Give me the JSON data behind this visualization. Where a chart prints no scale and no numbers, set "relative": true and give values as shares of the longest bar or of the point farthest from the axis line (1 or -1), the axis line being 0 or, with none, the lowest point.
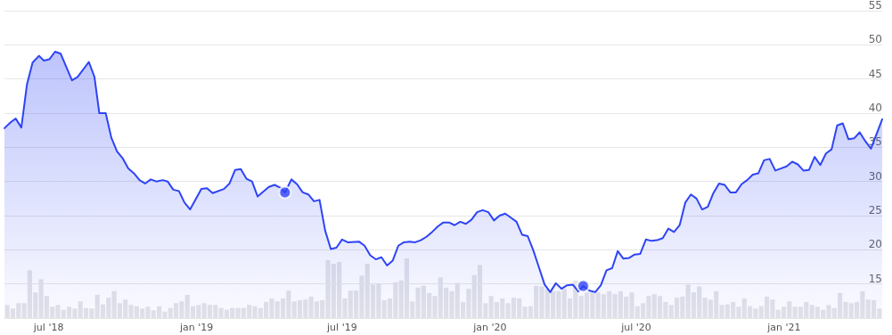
{
  "chart_data": [
    {
      "type": "area",
      "xlim": [
        "2018-05-07",
        "2021-05-03"
      ],
      "ylim": [
        10,
        55
      ],
      "yticks": [
        15,
        20,
        25,
        30,
        35,
        40,
        45,
        50,
        55
      ],
      "xticks": [
        {
          "value": "2018-07-01",
          "label": "jul '18"
        },
        {
          "value": "2019-01-01",
          "label": "jan '19"
        },
        {
          "value": "2019-07-01",
          "label": "jul '19"
        },
        {
          "value": "2020-01-01",
          "label": "jan '20"
        },
        {
          "value": "2020-07-01",
          "label": "jul '20"
        },
        {
          "value": "2021-01-01",
          "label": "jan '21"
        }
      ],
      "grid": "y",
      "marker": "none",
      "line_style": "solid",
      "series": [
        {
          "color": "#2e44f5",
          "x": [
            "2018-05-07",
            "2018-05-15",
            "2018-05-21",
            "2018-05-28",
            "2018-06-04",
            "2018-06-11",
            "2018-06-19",
            "2018-06-25",
            "2018-07-02",
            "2018-07-09",
            "2018-07-16",
            "2018-07-30",
            "2018-08-06",
            "2018-08-20",
            "2018-08-27",
            "2018-09-02",
            "2018-09-10",
            "2018-09-17",
            "2018-09-24",
            "2018-10-01",
            "2018-10-08",
            "2018-10-15",
            "2018-10-22",
            "2018-10-29",
            "2018-11-05",
            "2018-11-12",
            "2018-11-20",
            "2018-11-26",
            "2018-12-03",
            "2018-12-10",
            "2018-12-17",
            "2018-12-24",
            "2019-01-07",
            "2019-01-14",
            "2019-01-21",
            "2019-02-04",
            "2019-02-11",
            "2019-02-18",
            "2019-02-25",
            "2019-03-04",
            "2019-03-11",
            "2019-03-18",
            "2019-04-01",
            "2019-04-08",
            "2019-04-15",
            "2019-04-21",
            "2019-04-29",
            "2019-05-06",
            "2019-05-13",
            "2019-05-20",
            "2019-05-27",
            "2019-06-03",
            "2019-06-10",
            "2019-06-17",
            "2019-06-24",
            "2019-07-01",
            "2019-07-08",
            "2019-07-22",
            "2019-07-29",
            "2019-08-05",
            "2019-08-12",
            "2019-08-19",
            "2019-08-26",
            "2019-09-02",
            "2019-09-09",
            "2019-09-16",
            "2019-09-23",
            "2019-09-30",
            "2019-10-07",
            "2019-10-14",
            "2019-10-21",
            "2019-10-28",
            "2019-11-04",
            "2019-11-11",
            "2019-11-18",
            "2019-11-25",
            "2019-12-02",
            "2019-12-09",
            "2019-12-16",
            "2019-12-23",
            "2019-12-30",
            "2020-01-06",
            "2020-01-13",
            "2020-01-20",
            "2020-01-27",
            "2020-02-03",
            "2020-02-10",
            "2020-02-17",
            "2020-02-24",
            "2020-03-02",
            "2020-03-09",
            "2020-03-16",
            "2020-03-23",
            "2020-03-30",
            "2020-04-06",
            "2020-04-13",
            "2020-04-20",
            "2020-04-26",
            "2020-05-04",
            "2020-05-11",
            "2020-05-18",
            "2020-05-25",
            "2020-06-01",
            "2020-06-08",
            "2020-06-15",
            "2020-06-22",
            "2020-06-29",
            "2020-07-06",
            "2020-07-13",
            "2020-07-20",
            "2020-07-27",
            "2020-08-03",
            "2020-08-10",
            "2020-08-17",
            "2020-08-24",
            "2020-08-31",
            "2020-09-07",
            "2020-09-14",
            "2020-09-21",
            "2020-09-28",
            "2020-10-05",
            "2020-10-12",
            "2020-10-19",
            "2020-10-26",
            "2020-11-02",
            "2020-11-09",
            "2020-11-16",
            "2020-11-23",
            "2020-11-30",
            "2020-12-07",
            "2020-12-14",
            "2020-12-21",
            "2020-12-28",
            "2021-01-04",
            "2021-01-11",
            "2021-01-18",
            "2021-01-25",
            "2021-02-01",
            "2021-02-08",
            "2021-02-15",
            "2021-02-22",
            "2021-03-01",
            "2021-03-08",
            "2021-03-15",
            "2021-03-22",
            "2021-03-29",
            "2021-04-05",
            "2021-04-12",
            "2021-04-19",
            "2021-05-03"
          ],
          "values": [
            37.8,
            38.7,
            39.2,
            37.9,
            44.2,
            47.4,
            48.4,
            47.7,
            47.9,
            49.0,
            48.7,
            44.8,
            45.3,
            47.5,
            45.3,
            40.0,
            40.0,
            36.4,
            34.4,
            33.4,
            31.9,
            31.2,
            30.2,
            29.7,
            30.3,
            30.0,
            30.2,
            30.0,
            28.8,
            28.6,
            26.9,
            25.9,
            28.9,
            29.0,
            28.3,
            28.9,
            29.7,
            31.7,
            31.8,
            30.4,
            30.0,
            27.8,
            29.2,
            29.5,
            29.1,
            28.4,
            30.3,
            29.6,
            28.4,
            28.1,
            27.1,
            27.3,
            22.8,
            20.1,
            20.3,
            21.5,
            21.1,
            21.2,
            20.6,
            19.2,
            18.6,
            18.9,
            17.7,
            18.4,
            20.6,
            21.1,
            21.2,
            21.1,
            21.4,
            21.9,
            22.6,
            23.4,
            24.0,
            24.0,
            23.6,
            24.1,
            23.8,
            24.4,
            25.5,
            25.8,
            25.5,
            24.3,
            25.0,
            25.3,
            24.7,
            24.1,
            22.2,
            22.0,
            19.9,
            17.4,
            14.9,
            13.8,
            15.1,
            14.3,
            14.8,
            14.9,
            13.9,
            14.7,
            14.0,
            13.8,
            14.8,
            17.0,
            17.3,
            19.8,
            18.7,
            18.8,
            19.3,
            19.4,
            21.5,
            21.3,
            21.4,
            21.7,
            23.1,
            22.6,
            23.6,
            26.9,
            28.1,
            27.5,
            25.9,
            26.3,
            28.3,
            29.7,
            29.5,
            28.4,
            28.4,
            29.6,
            30.2,
            31.0,
            31.2,
            33.1,
            33.3,
            31.6,
            31.9,
            32.2,
            32.9,
            32.5,
            31.6,
            31.7,
            33.6,
            32.4,
            34.1,
            34.7,
            38.2,
            38.5,
            36.2,
            36.3,
            37.2,
            35.9,
            34.8,
            39.1
          ]
        },
        {
          "type": "scatter",
          "marker": "circle",
          "color": "#2e44f5",
          "x": [
            "2019-04-21",
            "2020-04-26"
          ],
          "values": [
            28.4,
            14.7
          ]
        }
      ]
    },
    {
      "type": "bar",
      "relative": true,
      "color": "#e3e3e8",
      "categories": [
        null,
        null,
        null,
        null,
        null,
        null,
        null,
        null,
        null,
        null,
        null,
        null,
        null,
        null,
        null,
        null,
        null,
        null,
        null,
        null,
        null,
        null,
        null,
        null,
        null,
        null,
        null,
        null,
        null,
        null,
        null,
        null,
        null,
        null,
        null,
        null,
        null,
        null,
        null,
        null,
        null,
        null,
        null,
        null,
        null,
        null,
        null,
        null,
        null,
        null,
        null,
        null,
        null,
        null,
        null,
        null,
        null,
        null,
        null,
        null,
        null,
        null,
        null,
        null,
        null,
        null,
        null,
        null,
        null,
        null,
        null,
        null,
        null,
        null,
        null,
        null,
        null,
        null,
        null,
        null,
        null,
        null,
        null,
        null,
        null,
        null,
        null,
        null,
        null,
        null,
        null,
        null,
        null,
        null,
        null,
        null,
        null,
        null,
        null,
        null,
        null,
        null,
        null,
        null,
        null,
        null,
        null,
        null,
        null,
        null,
        null,
        null,
        null,
        null,
        null,
        null,
        null,
        null,
        null,
        null,
        null,
        null,
        null,
        null,
        null,
        null,
        null,
        null,
        null,
        null,
        null,
        null,
        null,
        null,
        null,
        null,
        null,
        null,
        null,
        null,
        null,
        null,
        null,
        null,
        null,
        null,
        null,
        null,
        null,
        null,
        null,
        null,
        null,
        null,
        null,
        null
      ],
      "values": [
        0.22,
        0.16,
        0.25,
        0.25,
        0.8,
        0.43,
        0.65,
        0.37,
        0.19,
        0.22,
        0.14,
        0.19,
        0.16,
        0.28,
        0.17,
        0.16,
        0.39,
        0.23,
        0.34,
        0.45,
        0.25,
        0.31,
        0.22,
        0.2,
        0.16,
        0.19,
        0.13,
        0.2,
        0.11,
        0.17,
        0.25,
        0.28,
        0.39,
        0.2,
        0.22,
        0.25,
        0.22,
        0.22,
        0.17,
        0.14,
        0.17,
        0.17,
        0.17,
        0.22,
        0.2,
        0.17,
        0.27,
        0.33,
        0.28,
        0.33,
        0.46,
        0.28,
        0.3,
        0.31,
        0.36,
        0.28,
        0.3,
        0.97,
        0.91,
        0.94,
        0.33,
        0.46,
        0.46,
        0.71,
        0.91,
        0.56,
        0.57,
        0.3,
        0.33,
        0.6,
        0.63,
        1,
        0.28,
        0.51,
        0.54,
        0.42,
        0.37,
        0.68,
        0.51,
        0.45,
        0.59,
        0.27,
        0.49,
        0.72,
        0.89,
        0.25,
        0.37,
        0.27,
        0.33,
        0.25,
        0.34,
        0.33,
        0.19,
        0.2,
        0.54,
        0.53,
        0.49,
        0.45,
        0.45,
        0.49,
        0.33,
        0.63,
        0.37,
        0.43,
        0.43,
        0.43,
        0.4,
        0.45,
        0.4,
        0.45,
        0.36,
        0.43,
        0.2,
        0.25,
        0.37,
        0.4,
        0.37,
        0.27,
        0.22,
        0.34,
        0.36,
        0.56,
        0.43,
        0.53,
        0.34,
        0.31,
        0.45,
        0.22,
        0.23,
        0.27,
        0.19,
        0.33,
        0.2,
        0.16,
        0.2,
        0.36,
        0.31,
        0.14,
        0.19,
        0.28,
        0.19,
        0.19,
        0.27,
        0.22,
        0.19,
        0.14,
        0.22,
        0.17,
        0.42,
        0.27,
        0.25,
        0.27,
        0.45,
        0.31,
        0.3,
        0.16
      ]
    }
  ]
}
